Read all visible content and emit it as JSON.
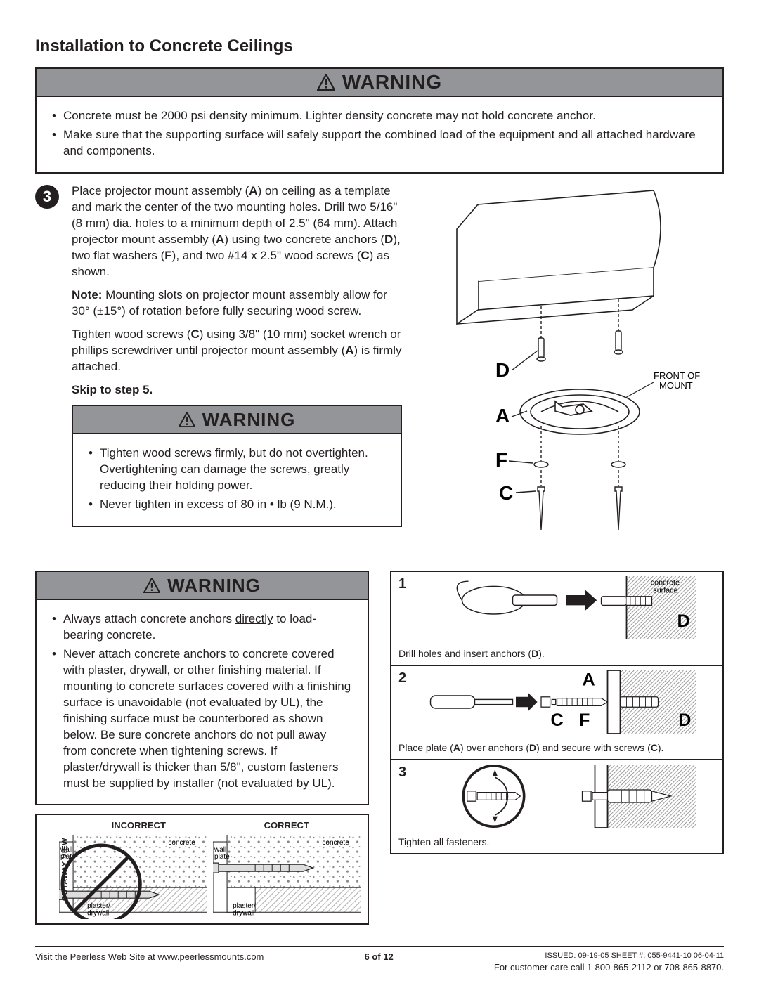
{
  "page_title": "Installation to Concrete Ceilings",
  "warnings": {
    "top": {
      "title": "WARNING",
      "items": [
        "Concrete must be 2000 psi density minimum. Lighter density concrete may not hold concrete anchor.",
        "Make sure that the supporting surface will safely support the combined load of the equipment and all attached hardware and components."
      ]
    },
    "mid": {
      "title": "WARNING",
      "items": [
        "Tighten wood screws firmly, but do not overtighten. Overtightening can damage the screws, greatly reducing their holding power.",
        "Never tighten in excess of 80 in • lb (9 N.M.)."
      ]
    },
    "bottom": {
      "title": "WARNING",
      "items_html": [
        "Always attach concrete anchors <span class=\"underlined\">directly</span> to load-bearing concrete.",
        "Never attach concrete anchors to concrete covered with plaster, drywall, or other finishing material. If mounting to concrete surfaces covered with a finishing surface is unavoidable (not evaluated by UL), the finishing surface must be counterbored as shown below. Be sure concrete anchors do not pull away from concrete when tightening screws. If plaster/drywall is thicker than 5/8\", custom fasteners must be supplied by installer (not evaluated by UL)."
      ]
    }
  },
  "step": {
    "number": "3",
    "paras_html": [
      "Place projector mount assembly (<span class=\"bolded\">A</span>) on ceiling as a template and mark the center of the two mounting holes. Drill two 5/16\" (8 mm) dia. holes to a minimum depth of 2.5\" (64 mm). Attach projector mount assembly (<span class=\"bolded\">A</span>) using two concrete anchors (<span class=\"bolded\">D</span>), two flat washers (<span class=\"bolded\">F</span>), and two #14 x 2.5\" wood screws (<span class=\"bolded\">C</span>) as shown.",
      "<span class=\"bolded\">Note:</span> Mounting slots on projector mount assembly allow for 30° (±15°) of rotation before fully securing wood screw.",
      "Tighten wood screws (<span class=\"bolded\">C</span>) using 3/8\" (10 mm) socket wrench or phillips screwdriver until projector mount assembly (<span class=\"bolded\">A</span>) is firmly attached."
    ],
    "skip": "Skip to step 5."
  },
  "assembly_labels": {
    "D": "D",
    "A": "A",
    "F": "F",
    "C": "C",
    "front": "FRONT OF\nMOUNT"
  },
  "cutaway": {
    "side_label": "CUTAWAY VIEW",
    "incorrect": "INCORRECT",
    "correct": "CORRECT",
    "tags": {
      "wall_plate": "wall\nplate",
      "concrete": "concrete",
      "plaster": "plaster/\ndrywall"
    }
  },
  "anchor_steps": {
    "s1": {
      "n": "1",
      "top_right": "concrete\nsurface",
      "letter": "D",
      "caption": "Drill holes and insert anchors (D)."
    },
    "s2": {
      "n": "2",
      "letters": {
        "A": "A",
        "C": "C",
        "F": "F",
        "D": "D"
      },
      "caption": "Place plate (A) over anchors (D) and secure with screws (C)."
    },
    "s3": {
      "n": "3",
      "caption": "Tighten all fasteners."
    }
  },
  "footer": {
    "left": "Visit the Peerless Web Site at www.peerlessmounts.com",
    "center": "6 of 12",
    "right_line1": "ISSUED: 09-19-05  SHEET #: 055-9441-10  06-04-11",
    "right_line2": "For customer care call 1-800-865-2112 or 708-865-8870."
  },
  "colors": {
    "bar_bg": "#939598",
    "ink": "#231f20",
    "concrete_fill": "#e8e8e8",
    "metal_fill": "#d0d0d0"
  }
}
